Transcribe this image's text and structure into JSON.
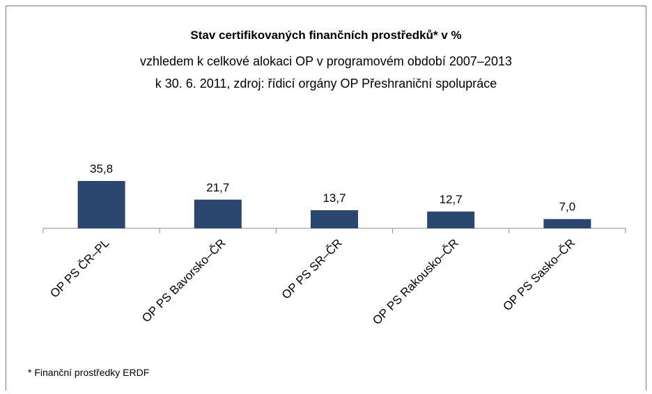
{
  "chart_data": {
    "type": "bar",
    "title": "Stav certifikovaných finančních prostředků* v %",
    "subtitle": [
      "vzhledem k celkové alokaci OP v programovém období 2007–2013",
      "k 30. 6. 2011, zdroj: řídicí orgány OP Přeshraniční spolupráce"
    ],
    "categories": [
      "OP PS ČR–PL",
      "OP PS Bavorsko–ČR",
      "OP PS SR–ČR",
      "OP PS Rakousko–ČR",
      "OP PS Sasko–ČR"
    ],
    "values": [
      35.8,
      21.7,
      13.7,
      12.7,
      7.0
    ],
    "value_labels": [
      "35,8",
      "21,7",
      "13,7",
      "12,7",
      "7,0"
    ],
    "color": "#2b4770",
    "footnote": "* Finanční prostředky ERDF"
  }
}
